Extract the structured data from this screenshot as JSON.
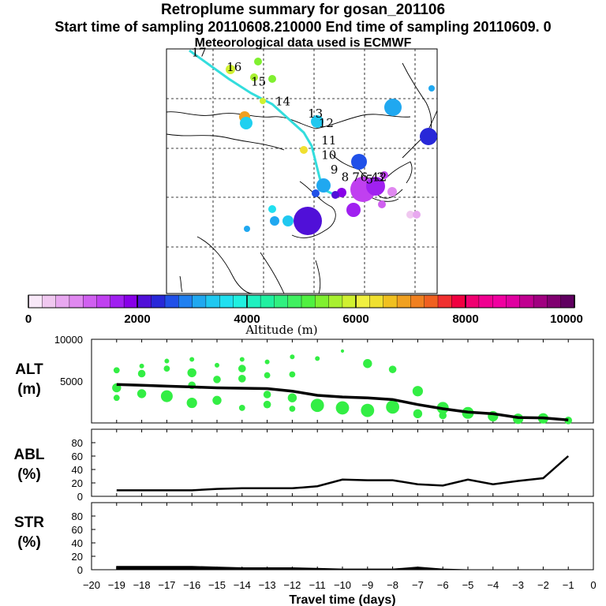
{
  "header": {
    "title": "Retroplume summary for gosan_201106",
    "sampling_line": "Start time of sampling 20110608.210000     End time of sampling 20110609.      0",
    "met_line": "Meteorological data used is ECMWF"
  },
  "colors": {
    "marker_green": "#33ee44",
    "line": "#000000",
    "trajectory": "#33dddd"
  },
  "colorbar": {
    "tick_labels": [
      "0",
      "2000",
      "4000",
      "6000",
      "8000",
      "10000"
    ],
    "label": "Altitude (m)",
    "colors": [
      "#f8e8f8",
      "#f0c8f0",
      "#e8a8f0",
      "#e088f0",
      "#d060f0",
      "#c040f0",
      "#a020f0",
      "#8800e8",
      "#5010d8",
      "#2828d8",
      "#2050e8",
      "#2080f0",
      "#20a8f0",
      "#20c8f0",
      "#20e0f0",
      "#20f0e0",
      "#20f0c0",
      "#20f0a0",
      "#30f080",
      "#40f060",
      "#50f040",
      "#80f030",
      "#a8f030",
      "#d0f030",
      "#f0f040",
      "#f0e030",
      "#f0c020",
      "#f0a020",
      "#f08020",
      "#f06020",
      "#f03030",
      "#f00040",
      "#f00070",
      "#f00090",
      "#f000a0",
      "#e000a0",
      "#c00090",
      "#a00080",
      "#800070",
      "#600060"
    ]
  },
  "map": {
    "trajectory_labels": [
      {
        "t": "17",
        "lon": 0.12,
        "lat": 0.97
      },
      {
        "t": "16",
        "lon": 0.25,
        "lat": 0.91
      },
      {
        "t": "15",
        "lon": 0.34,
        "lat": 0.85
      },
      {
        "t": "14",
        "lon": 0.43,
        "lat": 0.77
      },
      {
        "t": "13",
        "lon": 0.55,
        "lat": 0.72
      },
      {
        "t": "12",
        "lon": 0.59,
        "lat": 0.68
      },
      {
        "t": "11",
        "lon": 0.6,
        "lat": 0.61
      },
      {
        "t": "10",
        "lon": 0.6,
        "lat": 0.55
      },
      {
        "t": "9",
        "lon": 0.62,
        "lat": 0.49
      },
      {
        "t": "8",
        "lon": 0.66,
        "lat": 0.46
      },
      {
        "t": "7",
        "lon": 0.7,
        "lat": 0.46
      },
      {
        "t": "6",
        "lon": 0.73,
        "lat": 0.46
      },
      {
        "t": "5",
        "lon": 0.75,
        "lat": 0.45
      },
      {
        "t": "4",
        "lon": 0.77,
        "lat": 0.46
      },
      {
        "t": "3",
        "lon": 0.79,
        "lat": 0.46
      },
      {
        "t": "2",
        "lon": 0.8,
        "lat": 0.46
      }
    ]
  },
  "chart_data": [
    {
      "type": "line",
      "title": "ALT",
      "ylabel_line1": "ALT",
      "ylabel_line2": "(m)",
      "xlabel": "Travel time (days)",
      "ylim": [
        0,
        10000
      ],
      "y_tick_labels": [
        "10000",
        "5000"
      ],
      "x": [
        -19,
        -18,
        -17,
        -16,
        -15,
        -14,
        -13,
        -12,
        -11,
        -10,
        -9,
        -8,
        -7,
        -6,
        -5,
        -4,
        -3,
        -2,
        -1
      ],
      "series": [
        {
          "name": "mean altitude",
          "values": [
            4600,
            4500,
            4400,
            4300,
            4200,
            4150,
            4100,
            3800,
            3300,
            3100,
            3000,
            2800,
            2200,
            1700,
            1300,
            1100,
            650,
            600,
            350
          ]
        }
      ],
      "clusters": [
        {
          "x": -19,
          "y": 6300,
          "s": 3
        },
        {
          "x": -19,
          "y": 4200,
          "s": 5
        },
        {
          "x": -19,
          "y": 3000,
          "s": 3
        },
        {
          "x": -18,
          "y": 6800,
          "s": 2
        },
        {
          "x": -18,
          "y": 5900,
          "s": 4
        },
        {
          "x": -18,
          "y": 3500,
          "s": 5
        },
        {
          "x": -17,
          "y": 7400,
          "s": 2
        },
        {
          "x": -17,
          "y": 6500,
          "s": 3
        },
        {
          "x": -17,
          "y": 3200,
          "s": 7
        },
        {
          "x": -16,
          "y": 7600,
          "s": 2
        },
        {
          "x": -16,
          "y": 6000,
          "s": 5
        },
        {
          "x": -16,
          "y": 4500,
          "s": 4
        },
        {
          "x": -16,
          "y": 2400,
          "s": 6
        },
        {
          "x": -15,
          "y": 6900,
          "s": 2
        },
        {
          "x": -15,
          "y": 5200,
          "s": 4
        },
        {
          "x": -15,
          "y": 2700,
          "s": 5
        },
        {
          "x": -14,
          "y": 7600,
          "s": 2
        },
        {
          "x": -14,
          "y": 6500,
          "s": 4
        },
        {
          "x": -14,
          "y": 5300,
          "s": 4
        },
        {
          "x": -14,
          "y": 1800,
          "s": 3
        },
        {
          "x": -13,
          "y": 7300,
          "s": 2
        },
        {
          "x": -13,
          "y": 5700,
          "s": 3
        },
        {
          "x": -13,
          "y": 3400,
          "s": 4
        },
        {
          "x": -13,
          "y": 2200,
          "s": 4
        },
        {
          "x": -12,
          "y": 7900,
          "s": 2
        },
        {
          "x": -12,
          "y": 5800,
          "s": 3
        },
        {
          "x": -12,
          "y": 3000,
          "s": 5
        },
        {
          "x": -12,
          "y": 1700,
          "s": 3
        },
        {
          "x": -11,
          "y": 7700,
          "s": 2
        },
        {
          "x": -11,
          "y": 2100,
          "s": 8
        },
        {
          "x": -10,
          "y": 8600,
          "s": 1
        },
        {
          "x": -10,
          "y": 1800,
          "s": 8
        },
        {
          "x": -9,
          "y": 7100,
          "s": 5
        },
        {
          "x": -9,
          "y": 1500,
          "s": 8
        },
        {
          "x": -8,
          "y": 6400,
          "s": 4
        },
        {
          "x": -8,
          "y": 1900,
          "s": 8
        },
        {
          "x": -7,
          "y": 3800,
          "s": 6
        },
        {
          "x": -7,
          "y": 1100,
          "s": 5
        },
        {
          "x": -6,
          "y": 1800,
          "s": 7
        },
        {
          "x": -6,
          "y": 900,
          "s": 4
        },
        {
          "x": -5,
          "y": 1200,
          "s": 7
        },
        {
          "x": -4,
          "y": 800,
          "s": 6
        },
        {
          "x": -3,
          "y": 500,
          "s": 6
        },
        {
          "x": -2,
          "y": 550,
          "s": 6
        },
        {
          "x": -1,
          "y": 300,
          "s": 4
        }
      ]
    },
    {
      "type": "line",
      "title": "ABL",
      "ylabel_line1": "ABL",
      "ylabel_line2": "(%)",
      "ylim": [
        0,
        100
      ],
      "y_tick_labels": [
        "0",
        "20",
        "40",
        "60",
        "80"
      ],
      "x": [
        -19,
        -18,
        -17,
        -16,
        -15,
        -14,
        -13,
        -12,
        -11,
        -10,
        -9,
        -8,
        -7,
        -6,
        -5,
        -4,
        -3,
        -2,
        -1
      ],
      "series": [
        {
          "name": "ABL fraction",
          "values": [
            9,
            9,
            9,
            9,
            11,
            12,
            12,
            12,
            15,
            25,
            24,
            24,
            18,
            16,
            25,
            18,
            23,
            27,
            60
          ]
        }
      ]
    },
    {
      "type": "area",
      "title": "STR",
      "ylabel_line1": "STR",
      "ylabel_line2": "(%)",
      "ylim": [
        0,
        100
      ],
      "y_tick_labels": [
        "0",
        "20",
        "40",
        "60",
        "80"
      ],
      "x": [
        -19,
        -18,
        -17,
        -16,
        -15,
        -14,
        -13,
        -12,
        -11,
        -10,
        -9,
        -8,
        -7,
        -6,
        -5,
        -4,
        -3,
        -2,
        -1
      ],
      "series": [
        {
          "name": "stratospheric fraction",
          "values": [
            5,
            5,
            5,
            5,
            4,
            3,
            3,
            3,
            2,
            1,
            1,
            1,
            4,
            1,
            0,
            0,
            0,
            0,
            0
          ]
        }
      ],
      "x_tick_labels": [
        "−20",
        "−19",
        "−18",
        "−17",
        "−16",
        "−15",
        "−14",
        "−13",
        "−12",
        "−11",
        "−10",
        "−9",
        "−8",
        "−7",
        "−6",
        "−5",
        "−4",
        "−3",
        "−2",
        "−1",
        "0"
      ]
    }
  ]
}
